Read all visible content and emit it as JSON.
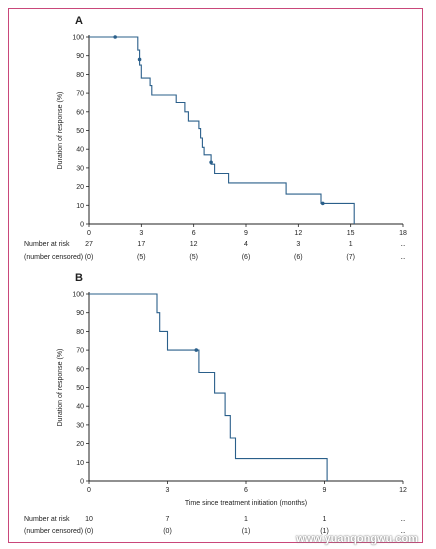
{
  "colors": {
    "curve": "#2a5f8a",
    "axis": "#222222",
    "border": "#c9477a",
    "text": "#222222"
  },
  "chart_data": [
    {
      "type": "line",
      "panel_label": "A",
      "xlabel": "",
      "ylabel": "Duration of response (%)",
      "xlim": [
        0,
        18
      ],
      "ylim": [
        0,
        100
      ],
      "xticks": [
        0,
        3,
        6,
        9,
        12,
        15,
        18
      ],
      "yticks": [
        0,
        10,
        20,
        30,
        40,
        50,
        60,
        70,
        80,
        90,
        100
      ],
      "series": [
        {
          "steps": [
            [
              0,
              100
            ],
            [
              2.8,
              100
            ],
            [
              2.8,
              93
            ],
            [
              2.9,
              93
            ],
            [
              2.9,
              85
            ],
            [
              3.0,
              85
            ],
            [
              3.0,
              78
            ],
            [
              3.5,
              78
            ],
            [
              3.5,
              74
            ],
            [
              3.6,
              74
            ],
            [
              3.6,
              69
            ],
            [
              5.0,
              69
            ],
            [
              5.0,
              65
            ],
            [
              5.5,
              65
            ],
            [
              5.5,
              60
            ],
            [
              5.7,
              60
            ],
            [
              5.7,
              55
            ],
            [
              6.3,
              55
            ],
            [
              6.3,
              51
            ],
            [
              6.4,
              51
            ],
            [
              6.4,
              46
            ],
            [
              6.5,
              46
            ],
            [
              6.5,
              41
            ],
            [
              6.6,
              41
            ],
            [
              6.6,
              37
            ],
            [
              7.0,
              37
            ],
            [
              7.0,
              32
            ],
            [
              7.2,
              32
            ],
            [
              7.2,
              27
            ],
            [
              8.0,
              27
            ],
            [
              8.0,
              22
            ],
            [
              11.3,
              22
            ],
            [
              11.3,
              16
            ],
            [
              13.3,
              16
            ],
            [
              13.3,
              11
            ],
            [
              15.2,
              11
            ],
            [
              15.2,
              0
            ]
          ],
          "censored": [
            [
              1.5,
              100
            ],
            [
              2.9,
              88
            ],
            [
              7.0,
              33
            ],
            [
              13.4,
              11
            ]
          ]
        }
      ],
      "risk_table": {
        "row1_label": "Number at risk",
        "row2_label": "(number censored)",
        "at_risk": [
          "27",
          "17",
          "12",
          "4",
          "3",
          "1",
          "‥"
        ],
        "censored": [
          "(0)",
          "(5)",
          "(5)",
          "(6)",
          "(6)",
          "(7)",
          "‥"
        ]
      }
    },
    {
      "type": "line",
      "panel_label": "B",
      "xlabel": "Time since treatment initiation (months)",
      "ylabel": "Duration of response (%)",
      "xlim": [
        0,
        12
      ],
      "ylim": [
        0,
        100
      ],
      "xticks": [
        0,
        3,
        6,
        9,
        12
      ],
      "yticks": [
        0,
        10,
        20,
        30,
        40,
        50,
        60,
        70,
        80,
        90,
        100
      ],
      "series": [
        {
          "steps": [
            [
              0,
              100
            ],
            [
              2.6,
              100
            ],
            [
              2.6,
              90
            ],
            [
              2.7,
              90
            ],
            [
              2.7,
              80
            ],
            [
              3.0,
              80
            ],
            [
              3.0,
              70
            ],
            [
              4.2,
              70
            ],
            [
              4.2,
              58
            ],
            [
              4.8,
              58
            ],
            [
              4.8,
              47
            ],
            [
              5.2,
              47
            ],
            [
              5.2,
              35
            ],
            [
              5.4,
              35
            ],
            [
              5.4,
              23
            ],
            [
              5.6,
              23
            ],
            [
              5.6,
              12
            ],
            [
              9.1,
              12
            ],
            [
              9.1,
              0
            ]
          ],
          "censored": [
            [
              4.1,
              70
            ]
          ]
        }
      ],
      "risk_table": {
        "row1_label": "Number at risk",
        "row2_label": "(number censored)",
        "at_risk": [
          "10",
          "7",
          "1",
          "1",
          "‥"
        ],
        "censored": [
          "(0)",
          "(0)",
          "(1)",
          "(1)",
          "‥"
        ]
      }
    }
  ],
  "watermark": "www.yuanqongwu.com"
}
